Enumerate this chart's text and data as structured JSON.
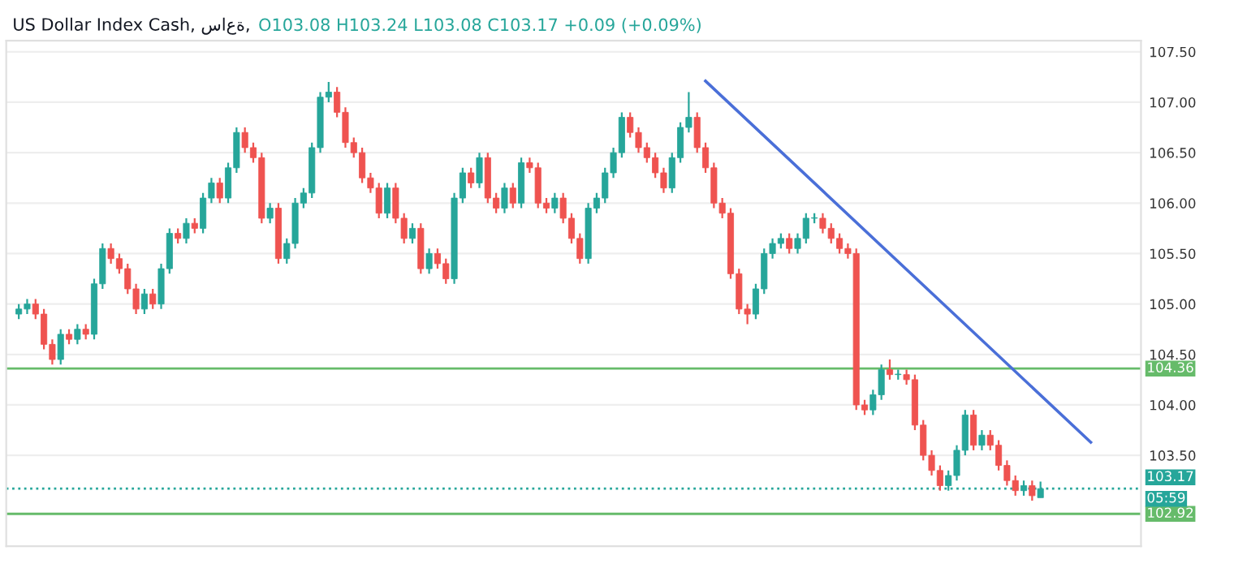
{
  "chart_data": {
    "type": "candlestick",
    "title": "US Dollar Index Cash, ساعة,",
    "subtitle": "O103.08 H103.24 L103.08 C103.17 +0.09 (+0.09%)",
    "categories": [
      null,
      null,
      null,
      null,
      null,
      null,
      null,
      null,
      null,
      null,
      null,
      null,
      null,
      null,
      null,
      null,
      null,
      null,
      null,
      null,
      null,
      null,
      null,
      null,
      null,
      null,
      null,
      null,
      null,
      null,
      null,
      null,
      null,
      null,
      null,
      null,
      null,
      null,
      null,
      null,
      null,
      null,
      null,
      null,
      null,
      null,
      null,
      null,
      null,
      null,
      null,
      null,
      null,
      null,
      null,
      null,
      null,
      null,
      null,
      null,
      null,
      null,
      null,
      null,
      null,
      null,
      null,
      null,
      null,
      null,
      null,
      null,
      null,
      null,
      null,
      null,
      null,
      null,
      null,
      null,
      null,
      null,
      null,
      null,
      null,
      null,
      null,
      null,
      null,
      null,
      null,
      null,
      null,
      null,
      null,
      null,
      null,
      null,
      null,
      null,
      null,
      null,
      null,
      null,
      null,
      null,
      null,
      null,
      null,
      null,
      null,
      null,
      null,
      null,
      null,
      null,
      null,
      null,
      null,
      null,
      null,
      null,
      null,
      null,
      null,
      null,
      null,
      null,
      null,
      null
    ],
    "ohlc": [
      [
        104.9,
        105.0,
        104.85,
        104.95
      ],
      [
        104.95,
        105.05,
        104.9,
        105.0
      ],
      [
        105.0,
        105.05,
        104.85,
        104.9
      ],
      [
        104.9,
        104.95,
        104.55,
        104.6
      ],
      [
        104.6,
        104.65,
        104.4,
        104.45
      ],
      [
        104.45,
        104.75,
        104.4,
        104.7
      ],
      [
        104.7,
        104.75,
        104.6,
        104.65
      ],
      [
        104.65,
        104.8,
        104.6,
        104.75
      ],
      [
        104.75,
        104.8,
        104.65,
        104.7
      ],
      [
        104.7,
        105.25,
        104.65,
        105.2
      ],
      [
        105.2,
        105.6,
        105.15,
        105.55
      ],
      [
        105.55,
        105.6,
        105.4,
        105.45
      ],
      [
        105.45,
        105.5,
        105.3,
        105.35
      ],
      [
        105.35,
        105.4,
        105.1,
        105.15
      ],
      [
        105.15,
        105.2,
        104.9,
        104.95
      ],
      [
        104.95,
        105.15,
        104.9,
        105.1
      ],
      [
        105.1,
        105.15,
        104.95,
        105.0
      ],
      [
        105.0,
        105.4,
        104.95,
        105.35
      ],
      [
        105.35,
        105.75,
        105.3,
        105.7
      ],
      [
        105.7,
        105.75,
        105.6,
        105.65
      ],
      [
        105.65,
        105.85,
        105.6,
        105.8
      ],
      [
        105.8,
        105.85,
        105.7,
        105.75
      ],
      [
        105.75,
        106.1,
        105.7,
        106.05
      ],
      [
        106.05,
        106.25,
        106.0,
        106.2
      ],
      [
        106.2,
        106.25,
        106.0,
        106.05
      ],
      [
        106.05,
        106.4,
        106.0,
        106.35
      ],
      [
        106.35,
        106.75,
        106.3,
        106.7
      ],
      [
        106.7,
        106.75,
        106.5,
        106.55
      ],
      [
        106.55,
        106.6,
        106.4,
        106.45
      ],
      [
        106.45,
        106.5,
        105.8,
        105.85
      ],
      [
        105.85,
        106.0,
        105.8,
        105.95
      ],
      [
        105.95,
        106.0,
        105.4,
        105.45
      ],
      [
        105.45,
        105.65,
        105.4,
        105.6
      ],
      [
        105.6,
        106.05,
        105.55,
        106.0
      ],
      [
        106.0,
        106.15,
        105.95,
        106.1
      ],
      [
        106.1,
        106.6,
        106.05,
        106.55
      ],
      [
        106.55,
        107.1,
        106.5,
        107.05
      ],
      [
        107.05,
        107.2,
        107.0,
        107.1
      ],
      [
        107.1,
        107.15,
        106.85,
        106.9
      ],
      [
        106.9,
        106.95,
        106.55,
        106.6
      ],
      [
        106.6,
        106.65,
        106.45,
        106.5
      ],
      [
        106.5,
        106.55,
        106.2,
        106.25
      ],
      [
        106.25,
        106.3,
        106.1,
        106.15
      ],
      [
        106.15,
        106.2,
        105.85,
        105.9
      ],
      [
        105.9,
        106.2,
        105.85,
        106.15
      ],
      [
        106.15,
        106.2,
        105.8,
        105.85
      ],
      [
        105.85,
        105.9,
        105.6,
        105.65
      ],
      [
        105.65,
        105.8,
        105.6,
        105.75
      ],
      [
        105.75,
        105.8,
        105.3,
        105.35
      ],
      [
        105.35,
        105.55,
        105.3,
        105.5
      ],
      [
        105.5,
        105.55,
        105.35,
        105.4
      ],
      [
        105.4,
        105.45,
        105.2,
        105.25
      ],
      [
        105.25,
        106.1,
        105.2,
        106.05
      ],
      [
        106.05,
        106.35,
        106.0,
        106.3
      ],
      [
        106.3,
        106.35,
        106.15,
        106.2
      ],
      [
        106.2,
        106.5,
        106.15,
        106.45
      ],
      [
        106.45,
        106.5,
        106.0,
        106.05
      ],
      [
        106.05,
        106.1,
        105.9,
        105.95
      ],
      [
        105.95,
        106.2,
        105.9,
        106.15
      ],
      [
        106.15,
        106.2,
        105.95,
        106.0
      ],
      [
        106.0,
        106.45,
        105.95,
        106.4
      ],
      [
        106.4,
        106.45,
        106.3,
        106.35
      ],
      [
        106.35,
        106.4,
        105.95,
        106.0
      ],
      [
        106.0,
        106.05,
        105.9,
        105.95
      ],
      [
        105.95,
        106.1,
        105.9,
        106.05
      ],
      [
        106.05,
        106.1,
        105.8,
        105.85
      ],
      [
        105.85,
        105.9,
        105.6,
        105.65
      ],
      [
        105.65,
        105.7,
        105.4,
        105.45
      ],
      [
        105.45,
        106.0,
        105.4,
        105.95
      ],
      [
        105.95,
        106.1,
        105.9,
        106.05
      ],
      [
        106.05,
        106.35,
        106.0,
        106.3
      ],
      [
        106.3,
        106.55,
        106.25,
        106.5
      ],
      [
        106.5,
        106.9,
        106.45,
        106.85
      ],
      [
        106.85,
        106.9,
        106.65,
        106.7
      ],
      [
        106.7,
        106.75,
        106.5,
        106.55
      ],
      [
        106.55,
        106.6,
        106.4,
        106.45
      ],
      [
        106.45,
        106.5,
        106.25,
        106.3
      ],
      [
        106.3,
        106.35,
        106.1,
        106.15
      ],
      [
        106.15,
        106.5,
        106.1,
        106.45
      ],
      [
        106.45,
        106.8,
        106.4,
        106.75
      ],
      [
        106.75,
        107.1,
        106.7,
        106.85
      ],
      [
        106.85,
        106.9,
        106.5,
        106.55
      ],
      [
        106.55,
        106.6,
        106.3,
        106.35
      ],
      [
        106.35,
        106.4,
        105.95,
        106.0
      ],
      [
        106.0,
        106.05,
        105.85,
        105.9
      ],
      [
        105.9,
        105.95,
        105.25,
        105.3
      ],
      [
        105.3,
        105.35,
        104.9,
        104.95
      ],
      [
        104.95,
        105.0,
        104.8,
        104.9
      ],
      [
        104.9,
        105.2,
        104.85,
        105.15
      ],
      [
        105.15,
        105.55,
        105.1,
        105.5
      ],
      [
        105.5,
        105.65,
        105.45,
        105.6
      ],
      [
        105.6,
        105.7,
        105.55,
        105.65
      ],
      [
        105.65,
        105.7,
        105.5,
        105.55
      ],
      [
        105.55,
        105.7,
        105.5,
        105.65
      ],
      [
        105.65,
        105.9,
        105.6,
        105.85
      ],
      [
        105.85,
        105.9,
        105.8,
        105.85
      ],
      [
        105.85,
        105.9,
        105.7,
        105.75
      ],
      [
        105.75,
        105.8,
        105.6,
        105.65
      ],
      [
        105.65,
        105.7,
        105.5,
        105.55
      ],
      [
        105.55,
        105.6,
        105.45,
        105.5
      ],
      [
        105.5,
        105.55,
        103.95,
        104.0
      ],
      [
        104.0,
        104.05,
        103.9,
        103.95
      ],
      [
        103.95,
        104.15,
        103.9,
        104.1
      ],
      [
        104.1,
        104.4,
        104.05,
        104.35
      ],
      [
        104.35,
        104.45,
        104.25,
        104.3
      ],
      [
        104.3,
        104.35,
        104.25,
        104.3
      ],
      [
        104.3,
        104.35,
        104.2,
        104.25
      ],
      [
        104.25,
        104.3,
        103.75,
        103.8
      ],
      [
        103.8,
        103.85,
        103.45,
        103.5
      ],
      [
        103.5,
        103.55,
        103.3,
        103.35
      ],
      [
        103.35,
        103.4,
        103.15,
        103.2
      ],
      [
        103.2,
        103.35,
        103.15,
        103.3
      ],
      [
        103.3,
        103.6,
        103.25,
        103.55
      ],
      [
        103.55,
        103.95,
        103.5,
        103.9
      ],
      [
        103.9,
        103.95,
        103.55,
        103.6
      ],
      [
        103.6,
        103.75,
        103.55,
        103.7
      ],
      [
        103.7,
        103.75,
        103.55,
        103.6
      ],
      [
        103.6,
        103.65,
        103.35,
        103.4
      ],
      [
        103.4,
        103.45,
        103.2,
        103.25
      ],
      [
        103.25,
        103.3,
        103.1,
        103.15
      ],
      [
        103.15,
        103.25,
        103.1,
        103.2
      ],
      [
        103.2,
        103.25,
        103.05,
        103.1
      ],
      [
        103.08,
        103.24,
        103.08,
        103.17
      ],
      null,
      null,
      null,
      null,
      null,
      null,
      null
    ],
    "series": [
      {
        "type": "line",
        "color": "#4a6fd8",
        "values": [
          null,
          null,
          null,
          null,
          null,
          null,
          null,
          null,
          null,
          null,
          null,
          null,
          null,
          null,
          null,
          null,
          null,
          null,
          null,
          null,
          null,
          null,
          null,
          null,
          null,
          null,
          null,
          null,
          null,
          null,
          null,
          null,
          null,
          null,
          null,
          null,
          null,
          null,
          null,
          null,
          null,
          null,
          null,
          null,
          null,
          null,
          null,
          null,
          null,
          null,
          null,
          null,
          null,
          null,
          null,
          null,
          null,
          null,
          null,
          null,
          null,
          null,
          null,
          null,
          null,
          null,
          null,
          null,
          null,
          null,
          null,
          null,
          null,
          null,
          null,
          null,
          null,
          null,
          null,
          null,
          null,
          null,
          107.21,
          null,
          null,
          null,
          null,
          null,
          null,
          null,
          null,
          null,
          null,
          null,
          null,
          null,
          null,
          null,
          null,
          null,
          null,
          null,
          null,
          null,
          null,
          null,
          null,
          null,
          null,
          null,
          null,
          null,
          null,
          null,
          null,
          null,
          null,
          null,
          null,
          null,
          null,
          null,
          null,
          null,
          null,
          null,
          null,
          null,
          103.63,
          null
        ]
      }
    ],
    "ylim": [
      102.6,
      107.61
    ],
    "yticks": [
      {
        "value": 103.5,
        "label": "103.50"
      },
      {
        "value": 104.0,
        "label": "104.00"
      },
      {
        "value": 104.5,
        "label": "104.50"
      },
      {
        "value": 105.0,
        "label": "105.00"
      },
      {
        "value": 105.5,
        "label": "105.50"
      },
      {
        "value": 106.0,
        "label": "106.00"
      },
      {
        "value": 106.5,
        "label": "106.50"
      },
      {
        "value": 107.0,
        "label": "107.00"
      },
      {
        "value": 107.5,
        "label": "107.50"
      }
    ],
    "ref_lines": [
      {
        "axis": "y",
        "value": 104.36,
        "label": "104.36",
        "color": "#66bb6a",
        "line_style": "solid"
      },
      {
        "axis": "y",
        "value": 103.17,
        "label": "103.17",
        "color": "#26a69a",
        "line_style": "dotted"
      },
      {
        "axis": "y",
        "value": 102.92,
        "label": "102.92",
        "color": "#66bb6a",
        "line_style": "solid"
      }
    ],
    "annotations": [
      "05:59"
    ],
    "grid": "y"
  }
}
